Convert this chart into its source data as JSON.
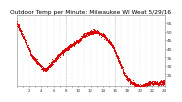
{
  "title": "Outdoor Temp per Minute: Milwaukee WI Weat 5/29/16",
  "line_color": "#dd0000",
  "bg_color": "#ffffff",
  "plot_bg": "#ffffff",
  "ylim": [
    18,
    60
  ],
  "yticks": [
    25,
    30,
    35,
    40,
    45,
    50,
    55
  ],
  "marker_size": 0.5,
  "title_fontsize": 4.2,
  "tick_fontsize": 3.2,
  "xlabel_fontsize": 2.8,
  "vline_positions": [
    480,
    960
  ],
  "num_points": 1440,
  "temp_shape": [
    55,
    54,
    52,
    50,
    48,
    46,
    44,
    42,
    40,
    38,
    36,
    35,
    34,
    33,
    32,
    31,
    30,
    29,
    28,
    28,
    28,
    29,
    30,
    31,
    32,
    33,
    34,
    35,
    36,
    37,
    38,
    38,
    39,
    40,
    40,
    41,
    42,
    42,
    43,
    43,
    44,
    44,
    45,
    46,
    47,
    48,
    48,
    49,
    49,
    49,
    50,
    50,
    50,
    50,
    50,
    49,
    49,
    48,
    48,
    47,
    46,
    45,
    44,
    43,
    42,
    40,
    38,
    36,
    34,
    32,
    30,
    28,
    26,
    24,
    23,
    22,
    21,
    20,
    20,
    19,
    19,
    18,
    18,
    18,
    18,
    18,
    19,
    19,
    20,
    20,
    20,
    20,
    20,
    20,
    20,
    20,
    20,
    20,
    20,
    20
  ]
}
